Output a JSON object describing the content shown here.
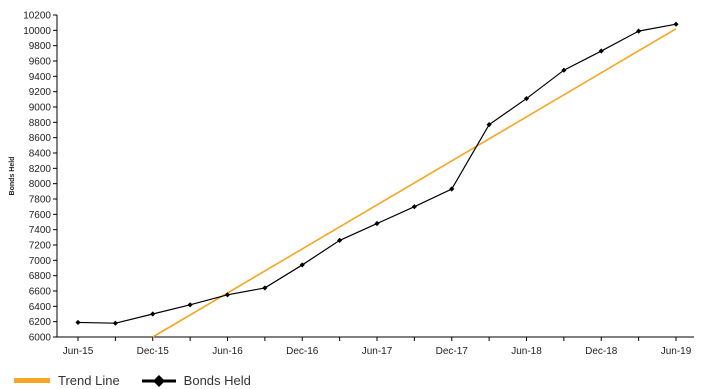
{
  "chart_data": {
    "type": "line",
    "ylabel": "Bonds Held",
    "xlabel": "",
    "ylim": [
      6000,
      10200
    ],
    "ytick_step": 200,
    "x_tick_labels": [
      "Jun-15",
      "Dec-15",
      "Jun-16",
      "Dec-16",
      "Jun-17",
      "Dec-17",
      "Jun-18",
      "Dec-18",
      "Jun-19"
    ],
    "x": [
      "Jun-15",
      "Sep-15",
      "Dec-15",
      "Mar-16",
      "Jun-16",
      "Sep-16",
      "Dec-16",
      "Mar-17",
      "Jun-17",
      "Sep-17",
      "Dec-17",
      "Mar-18",
      "Jun-18",
      "Sep-18",
      "Dec-18",
      "Mar-19",
      "Jun-19"
    ],
    "series": [
      {
        "name": "Bonds Held",
        "color": "#000000",
        "marker": "diamond",
        "values": [
          6190,
          6180,
          6300,
          6420,
          6550,
          6640,
          6940,
          7260,
          7480,
          7700,
          7930,
          8770,
          9110,
          9480,
          9730,
          9990,
          10080
        ]
      },
      {
        "name": "Trend Line",
        "color": "#F5A623",
        "values_linear_fit_endpoints": {
          "Dec-15": 6000,
          "Jun-19": 10020
        }
      }
    ],
    "grid": false,
    "legend_position": "bottom-left"
  }
}
